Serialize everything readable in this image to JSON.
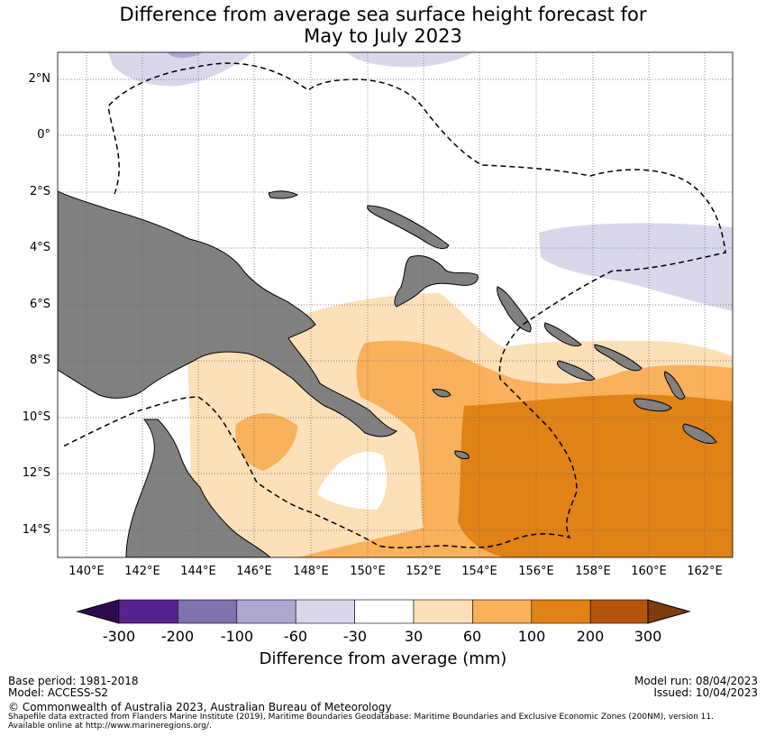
{
  "title": {
    "line1": "Difference from average sea surface height forecast for",
    "line2": "May to July 2023"
  },
  "lat_labels": [
    "2°N",
    "0°",
    "2°S",
    "4°S",
    "6°S",
    "8°S",
    "10°S",
    "12°S",
    "14°S"
  ],
  "lon_labels": [
    "140°E",
    "142°E",
    "144°E",
    "146°E",
    "148°E",
    "150°E",
    "152°E",
    "154°E",
    "156°E",
    "158°E",
    "160°E",
    "162°E"
  ],
  "colorbar": {
    "tick_labels": [
      "-300",
      "-200",
      "-100",
      "-60",
      "-30",
      "30",
      "60",
      "100",
      "200",
      "300"
    ],
    "colors": [
      "#2e0a4f",
      "#59238f",
      "#8171ad",
      "#aea7cf",
      "#d8d8ea",
      "#ffffff",
      "#fde0b8",
      "#f9b15c",
      "#e08216",
      "#b3560b",
      "#7f3d0d"
    ],
    "title": "Difference from average (mm)"
  },
  "colors": {
    "land": "#808080",
    "light_purple": "#d8d8ea",
    "mid_purple": "#aea7cf",
    "light_orange": "#fde0b8",
    "mid_orange": "#f9b15c",
    "dark_orange": "#e08216"
  },
  "footer": {
    "base_period": "Base period: 1981-2018",
    "model": "Model: ACCESS-S2",
    "model_run": "Model run: 08/04/2023",
    "issued": "Issued: 10/04/2023",
    "copyright": "© Commonwealth of Australia 2023, Australian Bureau of Meteorology",
    "shapefile_line1": "Shapefile data extracted from Flanders Marine Institute (2019), Maritime Boundaries Geodatabase: Maritime Boundaries and Exclusive Economic Zones (200NM), version 11.",
    "shapefile_line2": "Available online at http://www.marineregions.org/."
  }
}
